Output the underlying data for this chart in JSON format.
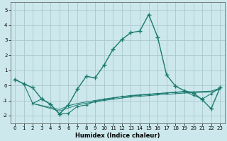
{
  "xlabel": "Humidex (Indice chaleur)",
  "background_color": "#cce8ec",
  "grid_color": "#aac8cc",
  "line_color": "#1a7a6e",
  "xlim": [
    -0.5,
    23.5
  ],
  "ylim": [
    -2.5,
    5.5
  ],
  "yticks": [
    -2,
    -1,
    0,
    1,
    2,
    3,
    4,
    5
  ],
  "xticks": [
    0,
    1,
    2,
    3,
    4,
    5,
    6,
    7,
    8,
    9,
    10,
    11,
    12,
    13,
    14,
    15,
    16,
    17,
    18,
    19,
    20,
    21,
    22,
    23
  ],
  "series1_x": [
    0,
    1,
    2,
    3,
    4,
    5,
    6,
    7,
    8,
    9,
    10,
    11,
    12,
    13,
    14,
    15,
    16,
    17,
    18,
    19,
    20,
    21,
    22,
    23
  ],
  "series1_y": [
    0.4,
    0.1,
    -0.15,
    -0.9,
    -1.25,
    -1.9,
    -1.3,
    -0.25,
    0.6,
    0.5,
    1.35,
    2.4,
    3.05,
    3.5,
    3.6,
    4.7,
    3.2,
    0.7,
    -0.05,
    -0.35,
    -0.5,
    -0.95,
    -1.55,
    -0.15
  ],
  "series2_x": [
    0,
    1,
    2,
    3,
    4,
    5,
    6,
    7,
    8,
    9,
    10,
    11,
    12,
    13,
    14,
    15,
    16,
    17,
    18,
    19,
    20,
    21,
    22,
    23
  ],
  "series2_y": [
    0.4,
    0.1,
    -1.2,
    -0.9,
    -1.25,
    -1.9,
    -1.85,
    -1.4,
    -1.3,
    -1.05,
    -0.95,
    -0.85,
    -0.75,
    -0.7,
    -0.65,
    -0.6,
    -0.55,
    -0.5,
    -0.45,
    -0.4,
    -0.65,
    -0.9,
    -0.55,
    -0.15
  ],
  "series3_x": [
    2,
    5,
    6,
    7,
    8,
    9,
    10,
    11,
    12,
    13,
    14,
    15,
    16,
    17,
    18,
    19,
    20,
    21,
    22,
    23
  ],
  "series3_y": [
    -1.2,
    -1.6,
    -1.35,
    -1.2,
    -1.1,
    -1.0,
    -0.9,
    -0.82,
    -0.74,
    -0.67,
    -0.62,
    -0.58,
    -0.54,
    -0.5,
    -0.47,
    -0.44,
    -0.42,
    -0.4,
    -0.38,
    -0.18
  ],
  "series4_x": [
    2,
    5,
    6,
    7,
    8,
    9,
    10,
    11,
    12,
    13,
    14,
    15,
    16,
    17,
    18,
    19,
    20,
    21,
    22,
    23
  ],
  "series4_y": [
    -1.2,
    -1.7,
    -1.5,
    -1.3,
    -1.18,
    -1.1,
    -1.0,
    -0.92,
    -0.84,
    -0.77,
    -0.72,
    -0.68,
    -0.63,
    -0.59,
    -0.55,
    -0.51,
    -0.48,
    -0.46,
    -0.44,
    -0.25
  ]
}
